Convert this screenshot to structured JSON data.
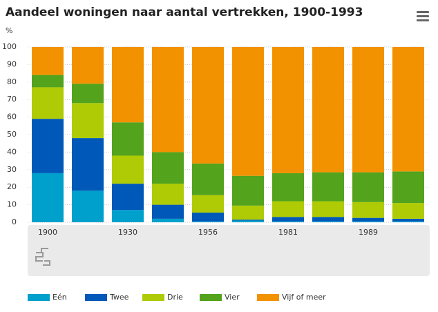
{
  "chart_data": {
    "type": "stacked-bar",
    "title": "Aandeel woningen naar aantal vertrekken, 1900-1993",
    "y_label": "%",
    "categories": [
      "1900",
      null,
      "1930",
      null,
      "1956",
      null,
      "1981",
      null,
      "1989",
      null
    ],
    "series": [
      {
        "name": "Eén",
        "color": "#00a0cc",
        "values": [
          28,
          18,
          7,
          2,
          0.5,
          1,
          0.5,
          0.5,
          0.5,
          0.5
        ]
      },
      {
        "name": "Twee",
        "color": "#0058b8",
        "values": [
          31,
          30,
          15,
          8,
          5,
          0.5,
          2.5,
          2.5,
          2,
          1.5
        ]
      },
      {
        "name": "Drie",
        "color": "#afcb05",
        "values": [
          18,
          20,
          16,
          12,
          10,
          8,
          9,
          9,
          9,
          9
        ]
      },
      {
        "name": "Vier",
        "color": "#53a31d",
        "values": [
          7,
          11,
          19,
          18,
          18,
          17,
          16,
          16.5,
          17,
          18
        ]
      },
      {
        "name": "Vijf of meer",
        "color": "#f39200",
        "values": [
          16,
          21,
          43,
          60,
          66.5,
          73.5,
          72,
          71.5,
          71.5,
          71
        ]
      }
    ],
    "ylim": [
      0,
      100
    ],
    "yticks": [
      0,
      10,
      20,
      30,
      40,
      50,
      60,
      70,
      80,
      90,
      100
    ],
    "grid": true
  }
}
